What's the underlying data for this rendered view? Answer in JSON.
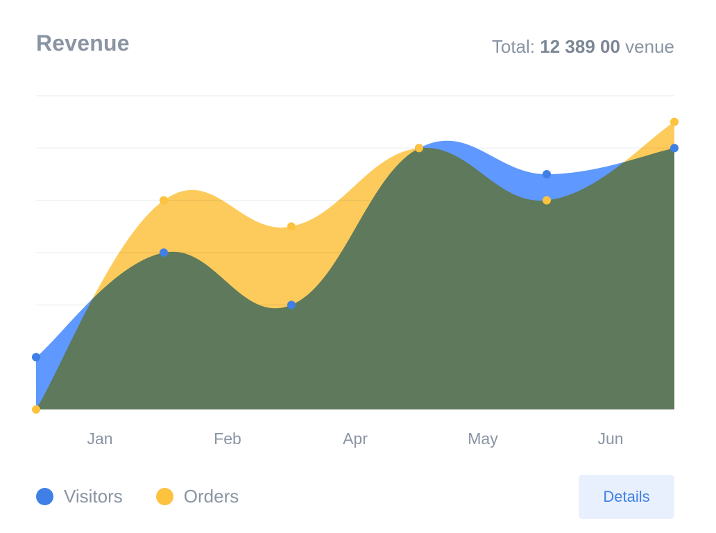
{
  "header": {
    "title": "Revenue",
    "total_prefix": "Total: ",
    "total_value": "12 389 00",
    "total_suffix": " venue"
  },
  "chart_data": {
    "type": "area",
    "categories": [
      "",
      "Jan",
      "Feb",
      "Apr",
      "May",
      "Jun"
    ],
    "ylim": [
      0,
      6
    ],
    "grid": true,
    "smooth": true,
    "legend_position": "bottom-left",
    "series": [
      {
        "name": "Visitors",
        "color": "#3f7fe6",
        "x": [
          0,
          1,
          2,
          3,
          4,
          5
        ],
        "values": [
          1,
          3,
          2,
          5,
          4.5,
          5
        ]
      },
      {
        "name": "Orders",
        "color": "#fdc23e",
        "x": [
          0,
          1,
          2,
          3,
          4,
          5
        ],
        "values": [
          0,
          4,
          3.5,
          5,
          4,
          5.5
        ]
      }
    ]
  },
  "legend": [
    {
      "label": "Visitors",
      "color": "#3f7fe6"
    },
    {
      "label": "Orders",
      "color": "#fdc23e"
    }
  ],
  "actions": {
    "details_label": "Details"
  }
}
